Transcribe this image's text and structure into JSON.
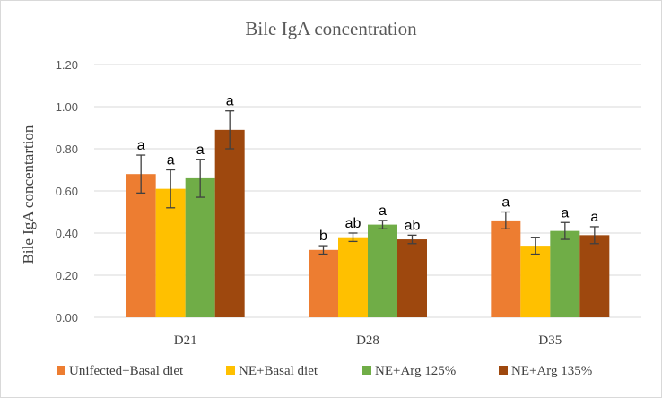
{
  "chart_data": {
    "type": "bar",
    "title": "Bile IgA concentration",
    "xlabel": "",
    "ylabel": "Bile IgA concentartion",
    "ylim": [
      0,
      1.2
    ],
    "yticks": [
      "0.00",
      "0.20",
      "0.40",
      "0.60",
      "0.80",
      "1.00",
      "1.20"
    ],
    "grid": true,
    "legend_position": "bottom",
    "categories": [
      "D21",
      "D28",
      "D35"
    ],
    "series": [
      {
        "name": "Unifected+Basal diet",
        "color": "#ed7d31",
        "values": [
          0.68,
          0.32,
          0.46
        ],
        "errors": [
          0.09,
          0.02,
          0.04
        ],
        "labels": [
          "a",
          "b",
          "a"
        ]
      },
      {
        "name": "NE+Basal diet",
        "color": "#ffc000",
        "values": [
          0.61,
          0.38,
          0.34
        ],
        "errors": [
          0.09,
          0.02,
          0.04
        ],
        "labels": [
          "a",
          "ab",
          ""
        ]
      },
      {
        "name": "NE+Arg 125%",
        "color": "#70ad47",
        "values": [
          0.66,
          0.44,
          0.41
        ],
        "errors": [
          0.09,
          0.02,
          0.04
        ],
        "labels": [
          "a",
          "a",
          "a"
        ]
      },
      {
        "name": "NE+Arg 135%",
        "color": "#9e480e",
        "values": [
          0.89,
          0.37,
          0.39
        ],
        "errors": [
          0.09,
          0.02,
          0.04
        ],
        "labels": [
          "a",
          "ab",
          "a"
        ]
      }
    ]
  }
}
